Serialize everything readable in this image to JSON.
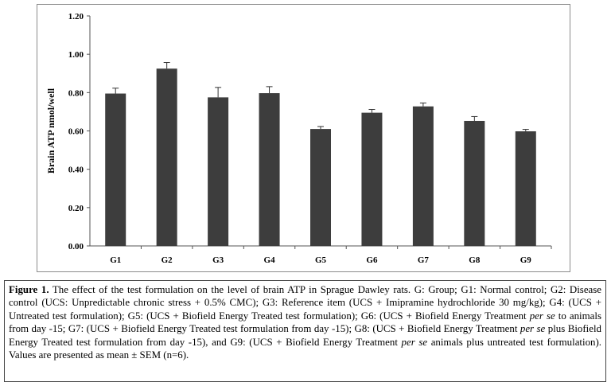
{
  "chart_data": {
    "type": "bar",
    "title": "",
    "xlabel": "",
    "ylabel": "Brain ATP nmol/well",
    "ylim": [
      0,
      1.2
    ],
    "yticks": [
      "0.00",
      "0.20",
      "0.40",
      "0.60",
      "0.80",
      "1.00",
      "1.20"
    ],
    "ytick_values": [
      0,
      0.2,
      0.4,
      0.6,
      0.8,
      1.0,
      1.2
    ],
    "categories": [
      "G1",
      "G2",
      "G3",
      "G4",
      "G5",
      "G6",
      "G7",
      "G8",
      "G9"
    ],
    "values": [
      0.795,
      0.925,
      0.775,
      0.797,
      0.61,
      0.695,
      0.728,
      0.652,
      0.598
    ],
    "errors": [
      0.028,
      0.032,
      0.052,
      0.034,
      0.013,
      0.017,
      0.018,
      0.023,
      0.01
    ],
    "bar_color": "#3d3d3d",
    "grid": false
  },
  "caption": {
    "label": "Figure 1.",
    "parts": [
      {
        "t": " The effect of the test formulation on the level of brain ATP in Sprague Dawley rats. G: Group; G1: Normal control; G2: Disease control (UCS: Unpredictable chronic stress + 0.5% CMC); G3: Reference item (UCS + Imipramine hydrochloride 30 mg/kg); G4: (UCS + Untreated test formulation); G5: (UCS + Biofield Energy Treated test formulation); G6: (UCS + Biofield Energy Treatment ",
        "i": false
      },
      {
        "t": "per se",
        "i": true
      },
      {
        "t": " to animals from day -15; G7: (UCS + Biofield Energy Treated test formulation from day -15); G8: (UCS + Biofield Energy Treatment ",
        "i": false
      },
      {
        "t": "per se",
        "i": true
      },
      {
        "t": " plus Biofield Energy Treated test formulation from day -15), and G9: (UCS + Biofield Energy Treatment ",
        "i": false
      },
      {
        "t": "per se",
        "i": true
      },
      {
        "t": " animals plus untreated test formulation). Values are presented as mean ± SEM (n=6).",
        "i": false
      }
    ]
  }
}
